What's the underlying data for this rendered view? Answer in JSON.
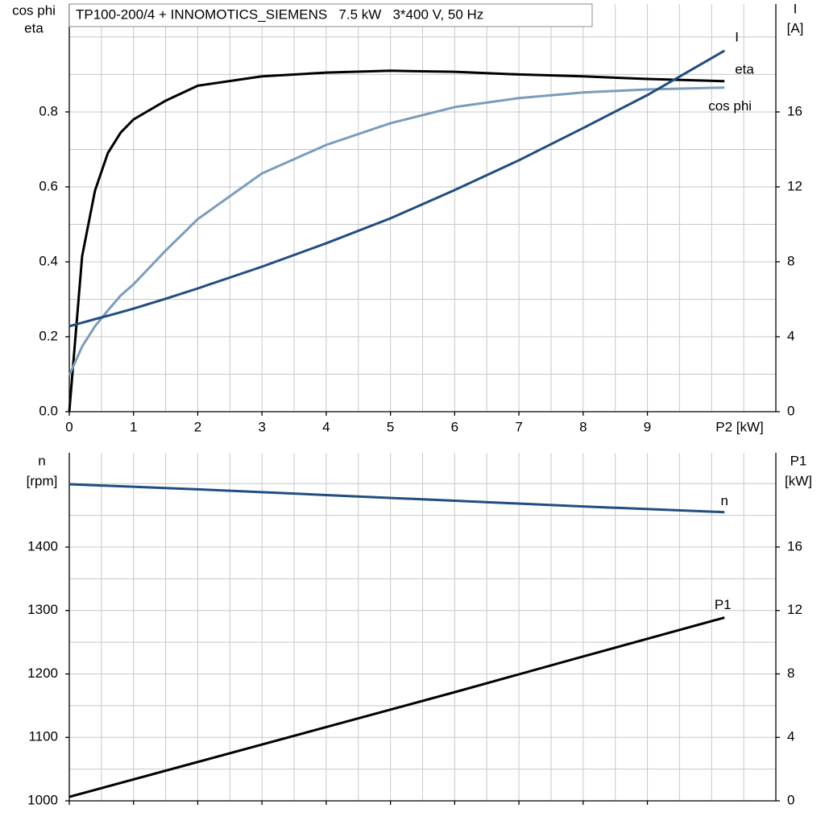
{
  "chart_data": [
    {
      "type": "line",
      "title": "TP100-200/4 + INNOMOTICS_SIEMENS   7.5 kW   3*400 V, 50 Hz",
      "ylabel": [
        "cos phi",
        "eta"
      ],
      "y2label": [
        "I",
        "[A]"
      ],
      "xlabel": "P2 [kW]",
      "x": [
        0,
        0.2,
        0.4,
        0.6,
        0.8,
        1,
        1.5,
        2,
        3,
        4,
        5,
        6,
        7,
        8,
        9,
        10.2
      ],
      "series": [
        {
          "name": "eta",
          "color": "#000000",
          "values": [
            0,
            0.415,
            0.59,
            0.69,
            0.745,
            0.78,
            0.83,
            0.87,
            0.895,
            0.905,
            0.91,
            0.907,
            0.9,
            0.895,
            0.888,
            0.882
          ]
        },
        {
          "name": "cos phi",
          "color": "#7b9cbc",
          "values": [
            0.097,
            0.174,
            0.228,
            0.27,
            0.31,
            0.34,
            0.43,
            0.514,
            0.636,
            0.712,
            0.77,
            0.813,
            0.837,
            0.852,
            0.86,
            0.865
          ]
        },
        {
          "name": "I",
          "color": "#1f4e7f",
          "axis": "y2",
          "values": [
            4.56,
            4.75,
            4.94,
            5.12,
            5.31,
            5.5,
            6.03,
            6.58,
            7.74,
            8.99,
            10.32,
            11.83,
            13.42,
            15.14,
            16.9,
            19.27
          ]
        }
      ],
      "xlim": [
        0,
        11
      ],
      "xticks": [
        0,
        1,
        2,
        3,
        4,
        5,
        6,
        7,
        8,
        9
      ],
      "xticklabels": true,
      "ylim": [
        0,
        1.088
      ],
      "yticks": [
        {
          "value": 0,
          "label": "0.0"
        },
        0.2,
        0.4,
        0.6,
        0.8
      ],
      "y2lim": [
        0,
        21.76
      ],
      "y2ticks": [
        0,
        4,
        8,
        12,
        16
      ],
      "grid": true
    },
    {
      "type": "line",
      "ylabel": [
        "n",
        "[rpm]"
      ],
      "y2label": [
        "P1",
        "[kW]"
      ],
      "x": [
        0,
        2,
        4,
        6,
        8,
        10.2
      ],
      "series": [
        {
          "name": "n",
          "color": "#1f4e7f",
          "values": [
            1499,
            1491,
            1482,
            1473,
            1464,
            1455
          ]
        },
        {
          "name": "P1",
          "color": "#000000",
          "axis": "y2",
          "values": [
            0.25,
            2.45,
            4.65,
            6.85,
            9.1,
            11.55
          ]
        }
      ],
      "xlim": [
        0,
        11
      ],
      "xticks": [
        0,
        1,
        2,
        3,
        4,
        5,
        6,
        7,
        8,
        9
      ],
      "xticklabels": false,
      "ylim": [
        1000,
        1548.6
      ],
      "yticks": [
        1000,
        1100,
        1200,
        1300,
        1400
      ],
      "y2lim": [
        0,
        21.94
      ],
      "y2ticks": [
        0,
        4,
        8,
        12,
        16
      ],
      "grid": true
    }
  ]
}
